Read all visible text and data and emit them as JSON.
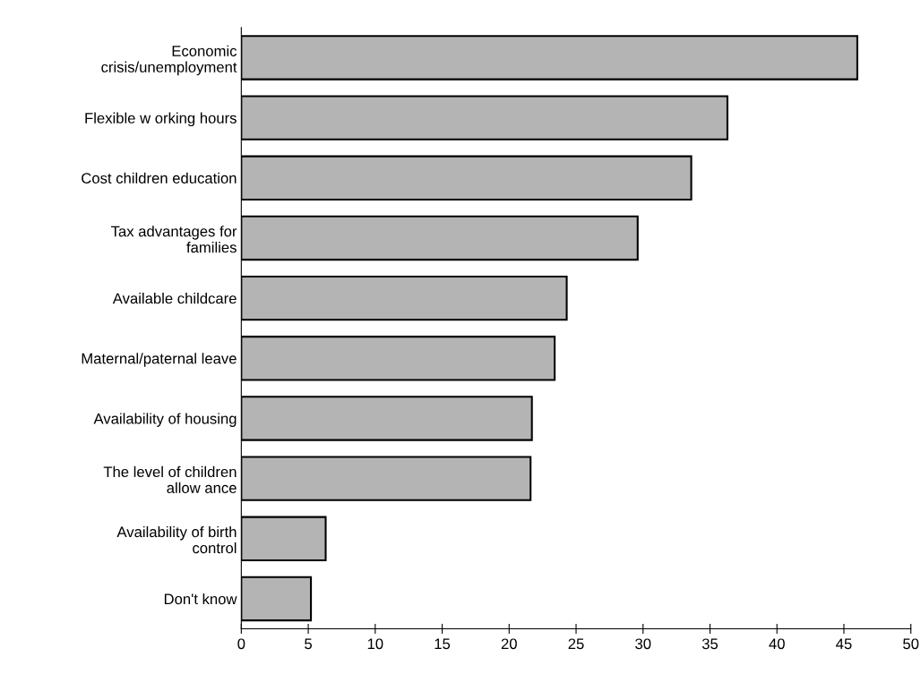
{
  "chart_data": {
    "type": "bar",
    "orientation": "horizontal",
    "categories": [
      "Economic\ncrisis/unemployment",
      "Flexible w orking hours",
      "Cost children education",
      "Tax advantages for\nfamilies",
      "Available childcare",
      "Maternal/paternal leave",
      "Availability of housing",
      "The level of children\nallow ance",
      "Availability of birth\ncontrol",
      "Don't know"
    ],
    "values": [
      46,
      36.3,
      33.6,
      29.6,
      24.3,
      23.4,
      21.7,
      21.6,
      6.3,
      5.2
    ],
    "color": "#b4b4b4",
    "xlim": [
      0,
      50
    ],
    "xticks": [
      0,
      5,
      10,
      15,
      20,
      25,
      30,
      35,
      40,
      45,
      50
    ],
    "grid": false
  }
}
